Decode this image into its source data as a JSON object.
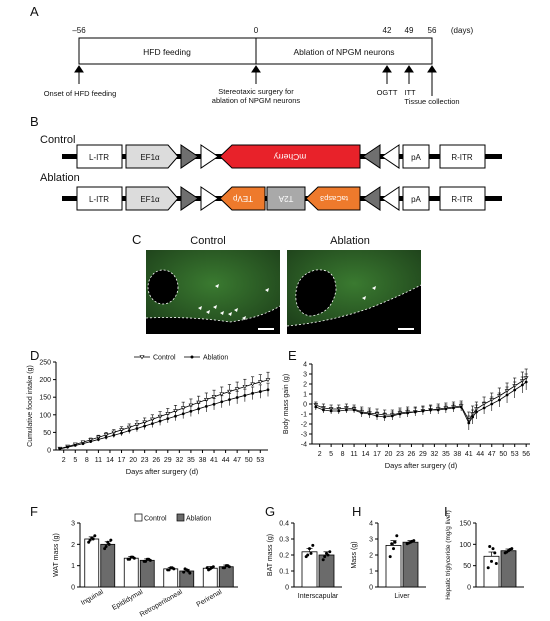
{
  "panel_letters": [
    "A",
    "B",
    "C",
    "D",
    "E",
    "F",
    "G",
    "H",
    "I"
  ],
  "timeline": {
    "ticks": [
      "–56",
      "0",
      "42",
      "49",
      "56",
      "(days)"
    ],
    "box_hfd": "HFD feeding",
    "box_ablation": "Ablation of NPGM neurons",
    "annot_onset": "Onset of HFD feeding",
    "annot_surgery_1": "Stereotaxic surgery for",
    "annot_surgery_2": "ablation of NPGM neurons",
    "annot_ogtt": "OGTT",
    "annot_itt": "ITT",
    "annot_tissue": "Tissue collection"
  },
  "constructs": {
    "control_label": "Control",
    "ablation_label": "Ablation",
    "litr": "L-ITR",
    "ef1a": "EF1α",
    "mcherry": "mCherry",
    "pa": "pA",
    "ritr": "R-ITR",
    "tevp": "TEVp",
    "t2a": "T2A",
    "tacasp3": "taCasp3",
    "colors": {
      "red": "#e8222a",
      "orange": "#ee7a2c",
      "lightgray": "#dcdcdc",
      "darkgray": "#6f6f6f",
      "gray": "#a9a9a9"
    }
  },
  "micrographs": {
    "control_label": "Control",
    "ablation_label": "Ablation",
    "tissue_color": "#2a5a22"
  },
  "chart_data": [
    {
      "panel": "D",
      "type": "line",
      "xlabel": "Days after surgery (d)",
      "ylabel": "Cumulative food intake (g)",
      "ylim": [
        0,
        250
      ],
      "yticks": [
        0,
        50,
        100,
        150,
        200,
        250
      ],
      "xticks": [
        2,
        5,
        8,
        11,
        14,
        17,
        20,
        23,
        26,
        29,
        32,
        35,
        38,
        41,
        44,
        47,
        50,
        53
      ],
      "xlim": [
        0,
        55
      ],
      "legend": "top",
      "series": [
        {
          "name": "Control",
          "x": [
            1,
            3,
            5,
            7,
            9,
            11,
            13,
            15,
            17,
            19,
            21,
            23,
            25,
            27,
            29,
            31,
            33,
            35,
            37,
            39,
            41,
            43,
            45,
            47,
            49,
            51,
            53,
            55
          ],
          "values": [
            4,
            10,
            16,
            22,
            29,
            36,
            43,
            50,
            57,
            64,
            72,
            79,
            87,
            95,
            103,
            111,
            119,
            127,
            135,
            143,
            151,
            159,
            166,
            173,
            180,
            187,
            193,
            199
          ],
          "err": [
            1,
            2,
            3,
            4,
            5,
            6,
            7,
            8,
            9,
            10,
            11,
            12,
            13,
            14,
            15,
            16,
            17,
            18,
            18,
            19,
            19,
            20,
            20,
            20,
            21,
            21,
            21,
            22
          ]
        },
        {
          "name": "Ablation",
          "x": [
            1,
            3,
            5,
            7,
            9,
            11,
            13,
            15,
            17,
            19,
            21,
            23,
            25,
            27,
            29,
            31,
            33,
            35,
            37,
            39,
            41,
            43,
            45,
            47,
            49,
            51,
            53,
            55
          ],
          "values": [
            3,
            8,
            13,
            18,
            24,
            30,
            36,
            42,
            48,
            55,
            61,
            68,
            75,
            82,
            89,
            96,
            103,
            110,
            117,
            124,
            130,
            137,
            143,
            149,
            155,
            161,
            166,
            171
          ],
          "err": [
            1,
            2,
            3,
            3,
            4,
            5,
            6,
            7,
            8,
            8,
            9,
            10,
            11,
            12,
            12,
            13,
            14,
            15,
            15,
            16,
            16,
            17,
            17,
            18,
            18,
            18,
            19,
            19
          ]
        }
      ]
    },
    {
      "panel": "E",
      "type": "line",
      "xlabel": "Days after surgery (d)",
      "ylabel": "Body mass gain (g)",
      "ylim": [
        -4,
        4
      ],
      "yticks": [
        -4,
        -3,
        -2,
        -1,
        0,
        1,
        2,
        3,
        4
      ],
      "xticks": [
        2,
        5,
        8,
        11,
        14,
        17,
        20,
        23,
        26,
        29,
        32,
        35,
        38,
        41,
        44,
        47,
        50,
        53,
        56
      ],
      "xlim": [
        0,
        57
      ],
      "series": [
        {
          "name": "Control",
          "x": [
            1,
            3,
            5,
            7,
            9,
            11,
            13,
            15,
            17,
            19,
            21,
            23,
            25,
            27,
            29,
            31,
            33,
            35,
            37,
            39,
            41,
            42,
            43,
            45,
            47,
            49,
            51,
            53,
            55,
            56
          ],
          "values": [
            -0.1,
            -0.4,
            -0.5,
            -0.5,
            -0.4,
            -0.5,
            -0.8,
            -0.9,
            -1.0,
            -1.1,
            -1.1,
            -0.9,
            -0.8,
            -0.8,
            -0.7,
            -0.6,
            -0.5,
            -0.4,
            -0.3,
            -0.2,
            -1.6,
            -1.0,
            -0.5,
            0.0,
            0.4,
            0.8,
            1.3,
            1.8,
            2.3,
            2.6
          ],
          "err": [
            0.3,
            0.4,
            0.4,
            0.4,
            0.4,
            0.4,
            0.5,
            0.5,
            0.5,
            0.5,
            0.5,
            0.5,
            0.5,
            0.5,
            0.5,
            0.5,
            0.5,
            0.5,
            0.5,
            0.5,
            0.8,
            0.8,
            0.7,
            0.7,
            0.7,
            0.8,
            0.8,
            0.8,
            0.9,
            0.9
          ]
        },
        {
          "name": "Ablation",
          "x": [
            1,
            3,
            5,
            7,
            9,
            11,
            13,
            15,
            17,
            19,
            21,
            23,
            25,
            27,
            29,
            31,
            33,
            35,
            37,
            39,
            41,
            42,
            43,
            45,
            47,
            49,
            51,
            53,
            55,
            56
          ],
          "values": [
            -0.3,
            -0.6,
            -0.7,
            -0.7,
            -0.6,
            -0.6,
            -0.9,
            -1.0,
            -1.2,
            -1.3,
            -1.2,
            -1.0,
            -0.9,
            -0.8,
            -0.7,
            -0.6,
            -0.6,
            -0.5,
            -0.4,
            -0.3,
            -1.9,
            -1.3,
            -0.8,
            -0.4,
            0.0,
            0.4,
            0.9,
            1.4,
            1.9,
            2.2
          ],
          "err": [
            0.3,
            0.3,
            0.3,
            0.3,
            0.3,
            0.3,
            0.4,
            0.4,
            0.4,
            0.4,
            0.4,
            0.4,
            0.4,
            0.4,
            0.4,
            0.4,
            0.4,
            0.4,
            0.4,
            0.4,
            0.7,
            0.7,
            0.7,
            0.6,
            0.7,
            0.7,
            0.8,
            0.8,
            0.8,
            0.8
          ]
        }
      ]
    },
    {
      "panel": "F",
      "type": "bar",
      "ylabel": "WAT mass (g)",
      "ylim": [
        0,
        3
      ],
      "yticks": [
        0,
        1,
        2,
        3
      ],
      "categories": [
        "Inguinal",
        "Epididymal",
        "Retroperitoneal",
        "Perirenal"
      ],
      "legend": "top",
      "series": [
        {
          "name": "Control",
          "values": [
            2.25,
            1.35,
            0.85,
            0.88
          ],
          "err": [
            0.1,
            0.08,
            0.07,
            0.08
          ],
          "points": [
            [
              2.1,
              2.3,
              2.4,
              2.2,
              2.25
            ],
            [
              1.3,
              1.4,
              1.35,
              1.3,
              1.4
            ],
            [
              0.8,
              0.9,
              0.85,
              0.8,
              0.9
            ],
            [
              0.9,
              0.85,
              0.95,
              0.8,
              0.9
            ]
          ]
        },
        {
          "name": "Ablation",
          "values": [
            2.0,
            1.25,
            0.75,
            0.95
          ],
          "err": [
            0.12,
            0.07,
            0.08,
            0.08
          ],
          "points": [
            [
              1.8,
              2.1,
              2.2,
              1.9,
              2.0
            ],
            [
              1.2,
              1.3,
              1.25,
              1.2,
              1.3
            ],
            [
              0.7,
              0.8,
              0.65,
              0.85,
              0.75
            ],
            [
              0.9,
              1.0,
              0.95,
              0.9,
              1.0
            ]
          ]
        }
      ]
    },
    {
      "panel": "G",
      "type": "bar",
      "ylabel": "BAT mass (g)",
      "ylim": [
        0,
        0.4
      ],
      "yticks": [
        0,
        0.1,
        0.2,
        0.3,
        0.4
      ],
      "categories": [
        "Interscapular"
      ],
      "series": [
        {
          "name": "Control",
          "values": [
            0.22
          ],
          "err": [
            0.02
          ],
          "points": [
            [
              0.19,
              0.24,
              0.26,
              0.2,
              0.21
            ]
          ]
        },
        {
          "name": "Ablation",
          "values": [
            0.2
          ],
          "err": [
            0.02
          ],
          "points": [
            [
              0.17,
              0.21,
              0.22,
              0.19,
              0.2
            ]
          ]
        }
      ]
    },
    {
      "panel": "H",
      "type": "bar",
      "ylabel": "Mass (g)",
      "ylim": [
        0,
        4
      ],
      "yticks": [
        0,
        1,
        2,
        3,
        4
      ],
      "categories": [
        "Liver"
      ],
      "series": [
        {
          "name": "Control",
          "values": [
            2.6
          ],
          "err": [
            0.3
          ],
          "points": [
            [
              1.9,
              2.4,
              3.2,
              2.7,
              2.8
            ]
          ]
        },
        {
          "name": "Ablation",
          "values": [
            2.8
          ],
          "err": [
            0.1
          ],
          "points": [
            [
              2.7,
              2.8,
              2.9,
              2.75,
              2.85
            ]
          ]
        }
      ]
    },
    {
      "panel": "I",
      "type": "bar",
      "ylabel": "Hepatic triglyceride (mg/g liver)",
      "ylim": [
        0,
        150
      ],
      "yticks": [
        0,
        50,
        100,
        150
      ],
      "categories": [
        ""
      ],
      "series": [
        {
          "name": "Control",
          "values": [
            72
          ],
          "err": [
            10
          ],
          "points": [
            [
              45,
              60,
              80,
              95,
              90,
              55
            ]
          ]
        },
        {
          "name": "Ablation",
          "values": [
            85
          ],
          "err": [
            4
          ],
          "points": [
            [
              80,
              85,
              90,
              82,
              88
            ]
          ]
        }
      ]
    }
  ],
  "legend_labels": {
    "control": "Control",
    "ablation": "Ablation"
  },
  "bar_colors": {
    "control": "#ffffff",
    "ablation": "#6b6b6b"
  }
}
